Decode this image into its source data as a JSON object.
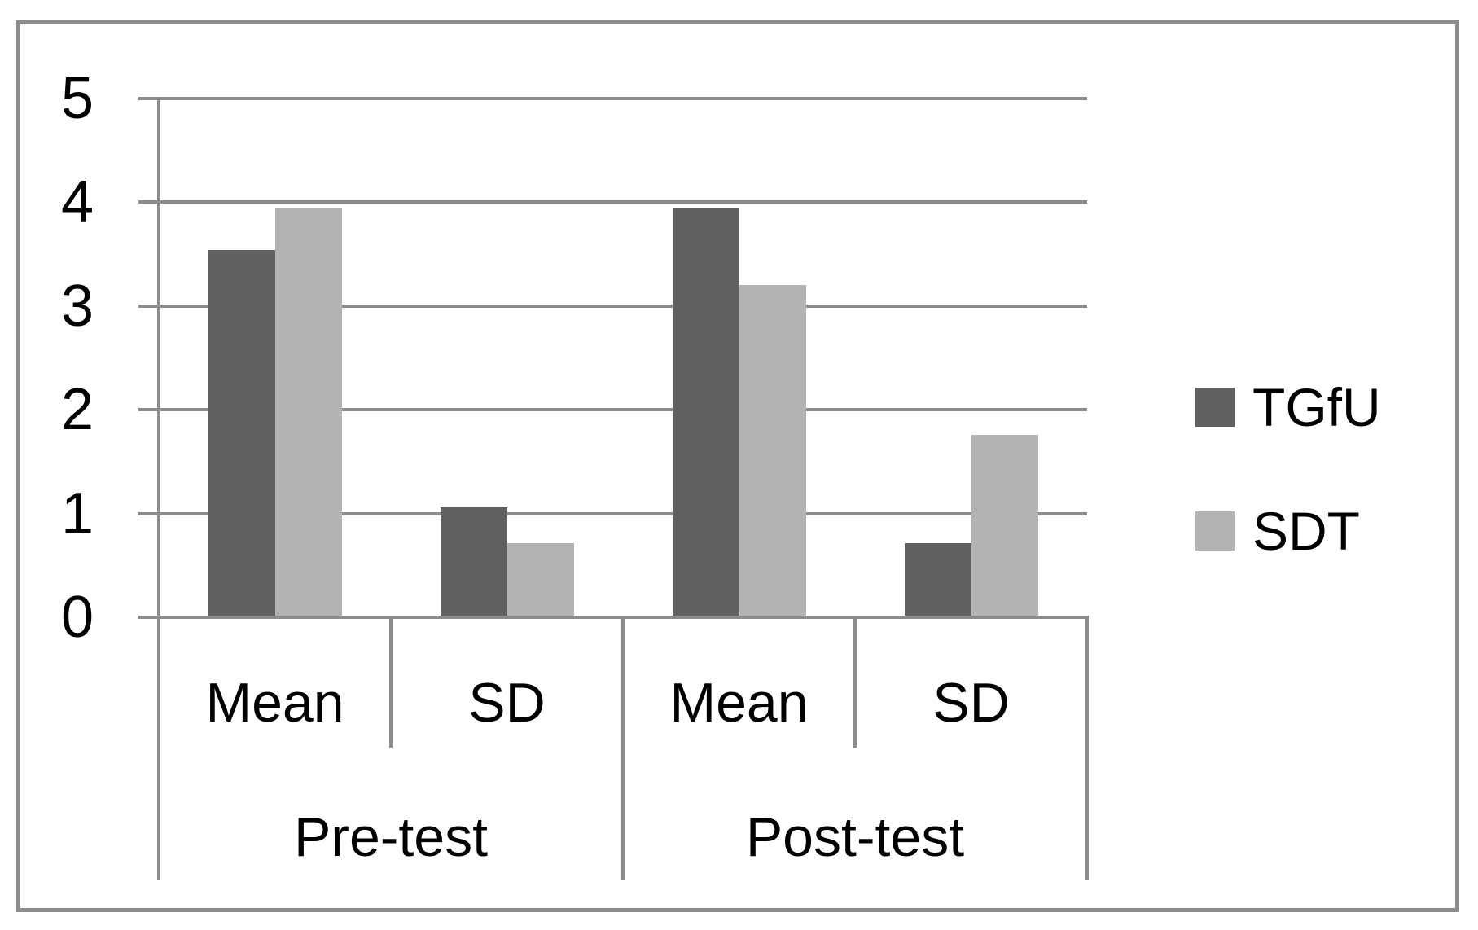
{
  "figure": {
    "background": "#ffffff",
    "border_color": "#8c8c8c"
  },
  "chart_data": {
    "type": "bar",
    "title": "",
    "xlabel": "",
    "ylabel": "",
    "group_labels": [
      "Pre-test",
      "Post-test"
    ],
    "categories": [
      "Mean",
      "SD",
      "Mean",
      "SD"
    ],
    "series": [
      {
        "name": "TGfU",
        "color": "#606060",
        "values": [
          3.54,
          1.06,
          3.94,
          0.71
        ]
      },
      {
        "name": "SDT",
        "color": "#b3b3b3",
        "values": [
          3.94,
          0.71,
          3.2,
          1.76
        ]
      }
    ],
    "ylim": [
      0,
      5
    ],
    "yticks": [
      0,
      1,
      2,
      3,
      4,
      5
    ],
    "grid": "horizontal",
    "gridline_color": "#8c8c8c",
    "axis_line_color": "#8c8c8c",
    "text_color": "#000000",
    "legend_position": "right"
  }
}
